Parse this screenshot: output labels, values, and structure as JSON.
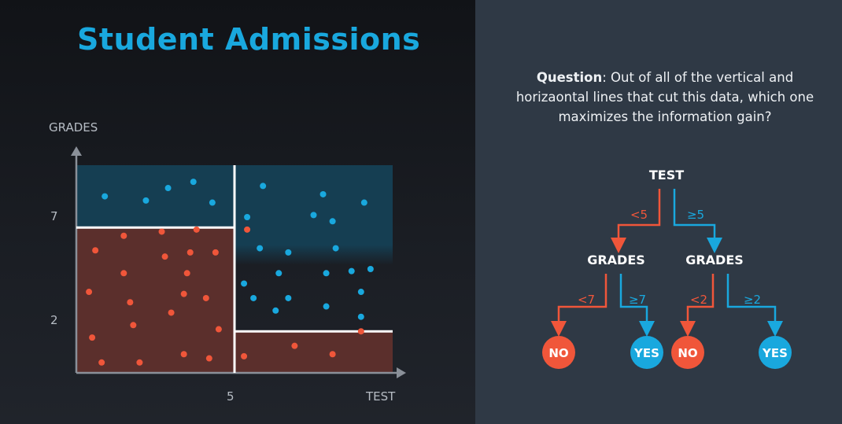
{
  "title": "Student Admissions",
  "axes": {
    "y_label": "GRADES",
    "x_label": "TEST",
    "y_ticks": [
      "7",
      "2"
    ],
    "x_ticks": [
      "5"
    ]
  },
  "question": {
    "prefix": "Question",
    "text": ": Out of all of the vertical and horizaontal lines that cut this data, which one maximizes the information gain?"
  },
  "tree": {
    "root": "TEST",
    "left_edge": "<5",
    "right_edge": "≥5",
    "left_node": "GRADES",
    "right_node": "GRADES",
    "ll_edge": "<7",
    "lr_edge": "≥7",
    "rl_edge": "<2",
    "rr_edge": "≥2",
    "leaf_ll": "NO",
    "leaf_lr": "YES",
    "leaf_rl": "NO",
    "leaf_rr": "YES"
  },
  "colors": {
    "blue": "#19a8de",
    "red": "#f0563a",
    "blue_region": "#153e52",
    "red_region": "#5b2f2c"
  },
  "chart_data": {
    "type": "scatter",
    "xlabel": "TEST",
    "ylabel": "GRADES",
    "xlim": [
      0,
      10
    ],
    "ylim": [
      0,
      10
    ],
    "splits": [
      {
        "axis": "x",
        "value": 5
      },
      {
        "axis": "y",
        "value": 7,
        "x_range": [
          0,
          5
        ]
      },
      {
        "axis": "y",
        "value": 2,
        "x_range": [
          5,
          10
        ]
      }
    ],
    "series": [
      {
        "class": "accepted",
        "color": "#19a8de",
        "points": [
          [
            0.9,
            8.5
          ],
          [
            2.2,
            8.3
          ],
          [
            2.9,
            8.9
          ],
          [
            3.7,
            9.2
          ],
          [
            4.3,
            8.2
          ],
          [
            5.9,
            9.0
          ],
          [
            7.5,
            7.6
          ],
          [
            7.8,
            8.6
          ],
          [
            9.1,
            8.2
          ],
          [
            5.4,
            7.5
          ],
          [
            8.1,
            7.3
          ],
          [
            5.8,
            6.0
          ],
          [
            6.7,
            5.8
          ],
          [
            8.2,
            6.0
          ],
          [
            9.3,
            5.0
          ],
          [
            8.7,
            4.9
          ],
          [
            7.9,
            4.8
          ],
          [
            6.4,
            4.8
          ],
          [
            5.3,
            4.3
          ],
          [
            9.0,
            3.9
          ],
          [
            5.6,
            3.6
          ],
          [
            6.7,
            3.6
          ],
          [
            7.9,
            3.2
          ],
          [
            6.3,
            3.0
          ],
          [
            9.0,
            2.7
          ]
        ]
      },
      {
        "class": "rejected",
        "color": "#f0563a",
        "points": [
          [
            5.4,
            6.9
          ],
          [
            1.5,
            6.6
          ],
          [
            2.7,
            6.8
          ],
          [
            3.8,
            6.9
          ],
          [
            0.6,
            5.9
          ],
          [
            2.8,
            5.6
          ],
          [
            3.6,
            5.8
          ],
          [
            4.4,
            5.8
          ],
          [
            1.5,
            4.8
          ],
          [
            3.5,
            4.8
          ],
          [
            0.4,
            3.9
          ],
          [
            1.7,
            3.4
          ],
          [
            3.4,
            3.8
          ],
          [
            4.1,
            3.6
          ],
          [
            3.0,
            2.9
          ],
          [
            1.8,
            2.3
          ],
          [
            4.5,
            2.1
          ],
          [
            0.5,
            1.7
          ],
          [
            3.4,
            0.9
          ],
          [
            4.2,
            0.7
          ],
          [
            0.8,
            0.5
          ],
          [
            2.0,
            0.5
          ],
          [
            5.3,
            0.8
          ],
          [
            6.9,
            1.3
          ],
          [
            8.1,
            0.9
          ],
          [
            9.0,
            2.0
          ]
        ]
      }
    ]
  }
}
